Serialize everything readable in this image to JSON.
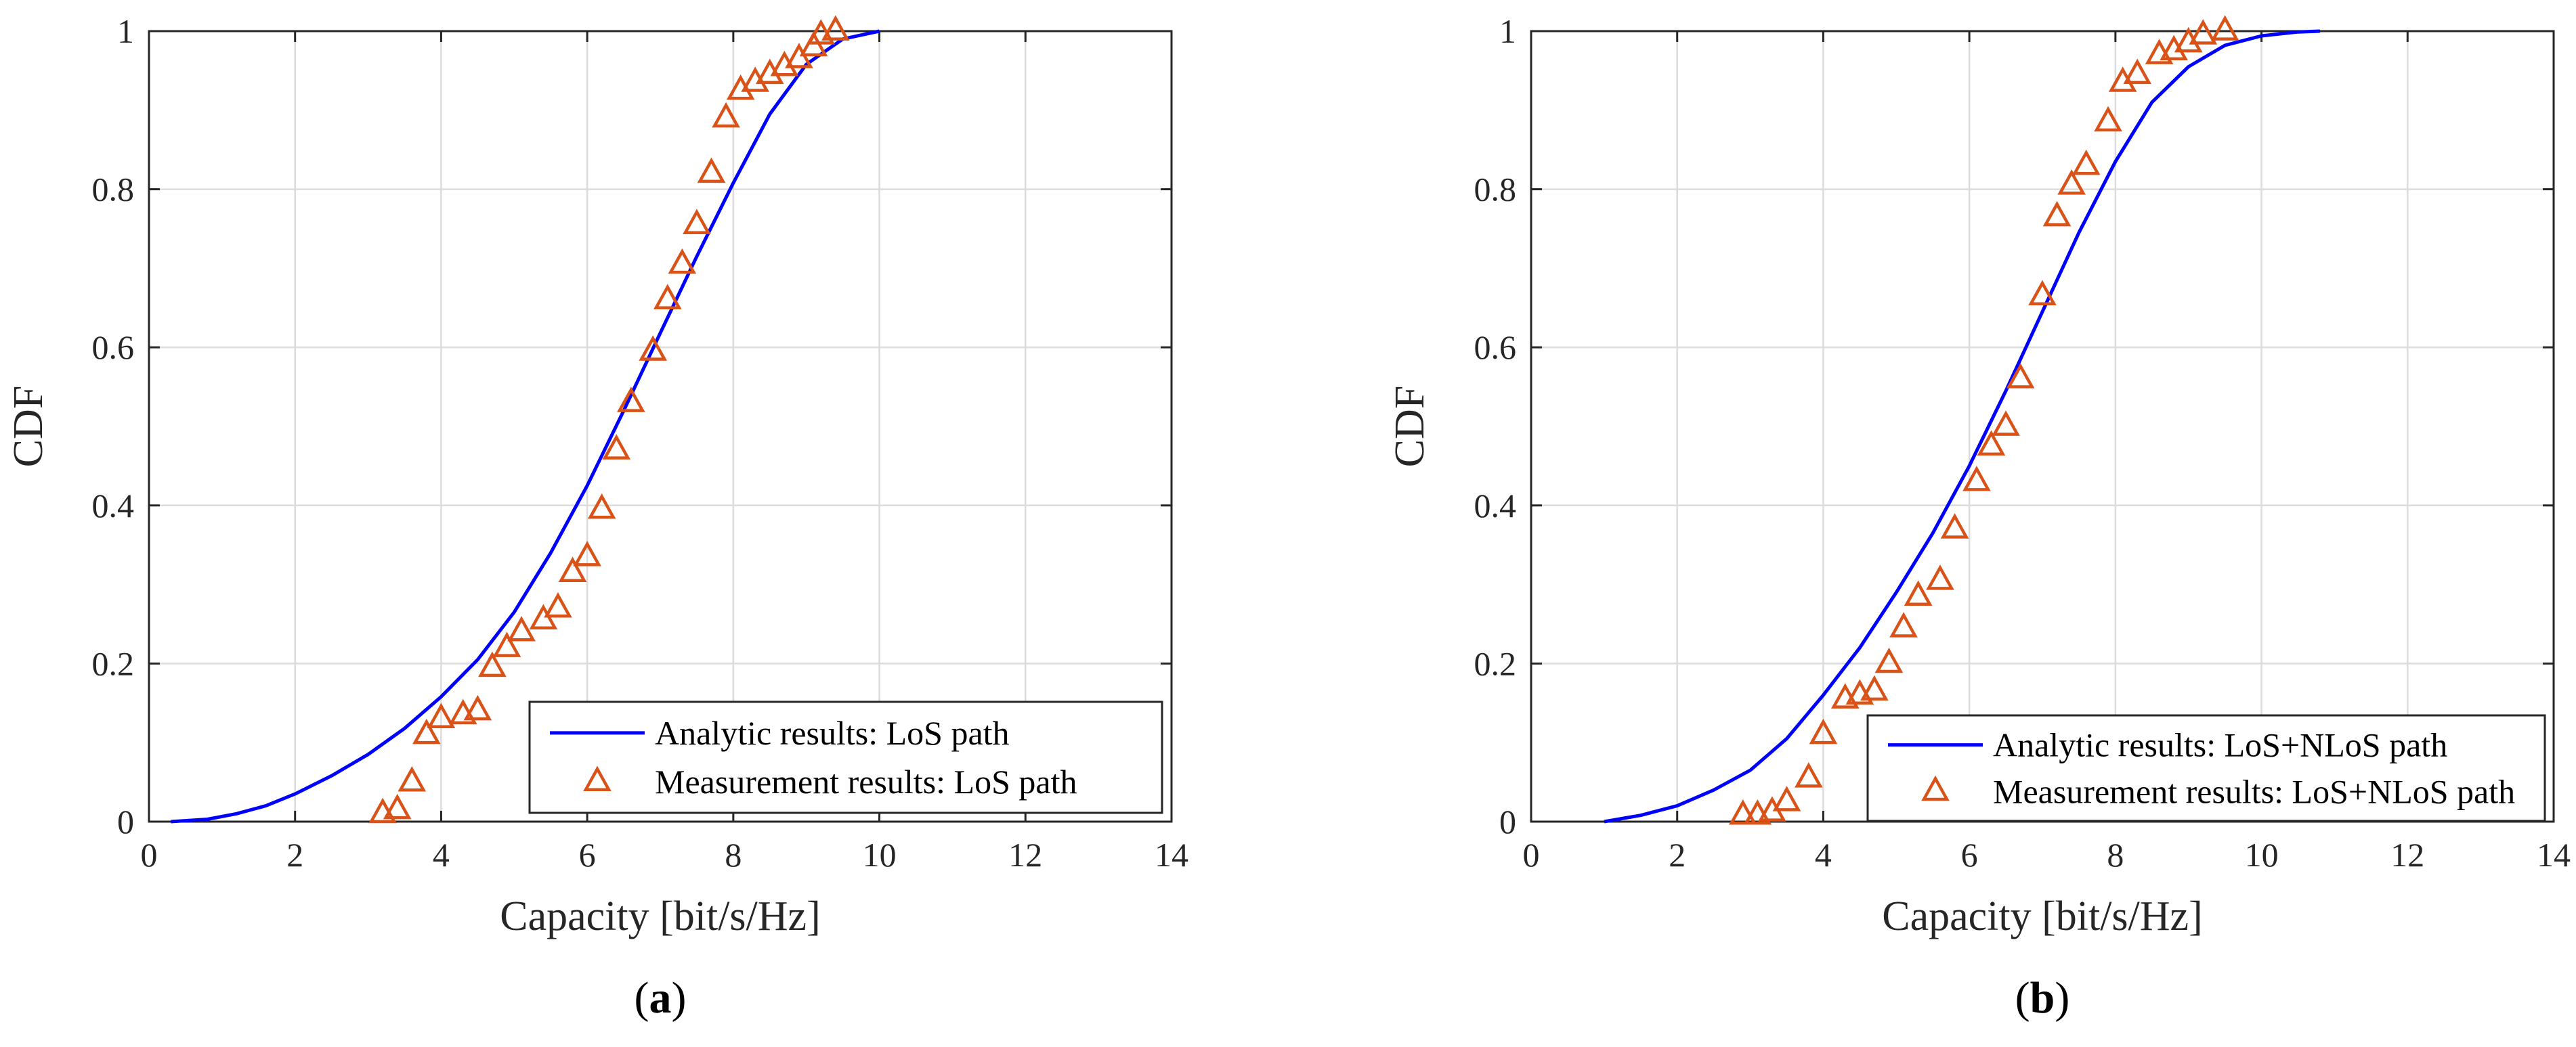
{
  "colors": {
    "analytic": "#0000ff",
    "measurement": "#d95319",
    "grid": "#dcdcdc",
    "axes": "#262626"
  },
  "chart_data": [
    {
      "id": "a",
      "type": "line",
      "caption": {
        "open": "(",
        "letter": "a",
        "close": ")"
      },
      "xlabel": "Capacity [bit/s/Hz]",
      "ylabel": "CDF",
      "xlim": [
        0,
        14
      ],
      "ylim": [
        0,
        1
      ],
      "xticks": [
        0,
        2,
        4,
        6,
        8,
        10,
        12,
        14
      ],
      "yticks": [
        0,
        0.2,
        0.4,
        0.6,
        0.8,
        1
      ],
      "xtick_labels": [
        "0",
        "2",
        "4",
        "6",
        "8",
        "10",
        "12",
        "14"
      ],
      "ytick_labels": [
        "0",
        "0.2",
        "0.4",
        "0.6",
        "0.8",
        "1"
      ],
      "grid": true,
      "legend_position": "bottom-right",
      "series": [
        {
          "name": "Analytic results: LoS path",
          "style": "line",
          "color": "#0000ff",
          "x": [
            0.3,
            0.8,
            1.2,
            1.6,
            2.0,
            2.5,
            3.0,
            3.5,
            4.0,
            4.5,
            5.0,
            5.5,
            6.0,
            6.5,
            7.0,
            7.5,
            8.0,
            8.5,
            9.0,
            9.5,
            10.0
          ],
          "y": [
            0.0,
            0.003,
            0.01,
            0.02,
            0.035,
            0.058,
            0.085,
            0.118,
            0.158,
            0.205,
            0.265,
            0.34,
            0.425,
            0.52,
            0.618,
            0.715,
            0.808,
            0.895,
            0.958,
            0.99,
            1.0
          ]
        },
        {
          "name": "Measurement results: LoS path",
          "style": "marker",
          "color": "#d95319",
          "x": [
            3.2,
            3.4,
            3.6,
            3.8,
            4.0,
            4.3,
            4.5,
            4.7,
            4.9,
            5.1,
            5.4,
            5.6,
            5.8,
            6.0,
            6.2,
            6.4,
            6.6,
            6.9,
            7.1,
            7.3,
            7.5,
            7.7,
            7.9,
            8.1,
            8.3,
            8.5,
            8.7,
            8.9,
            9.1,
            9.2,
            9.4
          ],
          "y": [
            0.01,
            0.015,
            0.05,
            0.11,
            0.13,
            0.135,
            0.14,
            0.195,
            0.22,
            0.24,
            0.255,
            0.27,
            0.315,
            0.335,
            0.395,
            0.47,
            0.53,
            0.595,
            0.66,
            0.705,
            0.755,
            0.82,
            0.89,
            0.925,
            0.935,
            0.945,
            0.955,
            0.965,
            0.98,
            0.995,
            1.0
          ]
        }
      ]
    },
    {
      "id": "b",
      "type": "line",
      "caption": {
        "open": "(",
        "letter": "b",
        "close": ")"
      },
      "xlabel": "Capacity [bit/s/Hz]",
      "ylabel": "CDF",
      "xlim": [
        0,
        14
      ],
      "ylim": [
        0,
        1
      ],
      "xticks": [
        0,
        2,
        4,
        6,
        8,
        10,
        12,
        14
      ],
      "yticks": [
        0,
        0.2,
        0.4,
        0.6,
        0.8,
        1
      ],
      "xtick_labels": [
        "0",
        "2",
        "4",
        "6",
        "8",
        "10",
        "12",
        "14"
      ],
      "ytick_labels": [
        "0",
        "0.2",
        "0.4",
        "0.6",
        "0.8",
        "1"
      ],
      "grid": true,
      "legend_position": "bottom-right",
      "series": [
        {
          "name": "Analytic results: LoS+NLoS path",
          "style": "line",
          "color": "#0000ff",
          "x": [
            1.0,
            1.5,
            2.0,
            2.5,
            3.0,
            3.5,
            4.0,
            4.5,
            5.0,
            5.5,
            6.0,
            6.5,
            7.0,
            7.5,
            8.0,
            8.5,
            9.0,
            9.5,
            10.0,
            10.5,
            10.8
          ],
          "y": [
            0.0,
            0.008,
            0.02,
            0.04,
            0.065,
            0.105,
            0.16,
            0.22,
            0.29,
            0.365,
            0.45,
            0.545,
            0.645,
            0.745,
            0.835,
            0.91,
            0.955,
            0.982,
            0.994,
            0.999,
            1.0
          ]
        },
        {
          "name": "Measurement results: LoS+NLoS path",
          "style": "marker",
          "color": "#d95319",
          "x": [
            2.9,
            3.1,
            3.3,
            3.5,
            3.8,
            4.0,
            4.3,
            4.5,
            4.7,
            4.9,
            5.1,
            5.3,
            5.6,
            5.8,
            6.1,
            6.3,
            6.5,
            6.7,
            7.0,
            7.2,
            7.4,
            7.6,
            7.9,
            8.1,
            8.3,
            8.6,
            8.8,
            9.0,
            9.2,
            9.5
          ],
          "y": [
            0.008,
            0.008,
            0.012,
            0.025,
            0.055,
            0.11,
            0.155,
            0.16,
            0.165,
            0.2,
            0.245,
            0.285,
            0.305,
            0.37,
            0.43,
            0.475,
            0.5,
            0.56,
            0.665,
            0.765,
            0.805,
            0.83,
            0.885,
            0.935,
            0.945,
            0.97,
            0.975,
            0.985,
            0.995,
            1.0
          ]
        }
      ]
    }
  ]
}
